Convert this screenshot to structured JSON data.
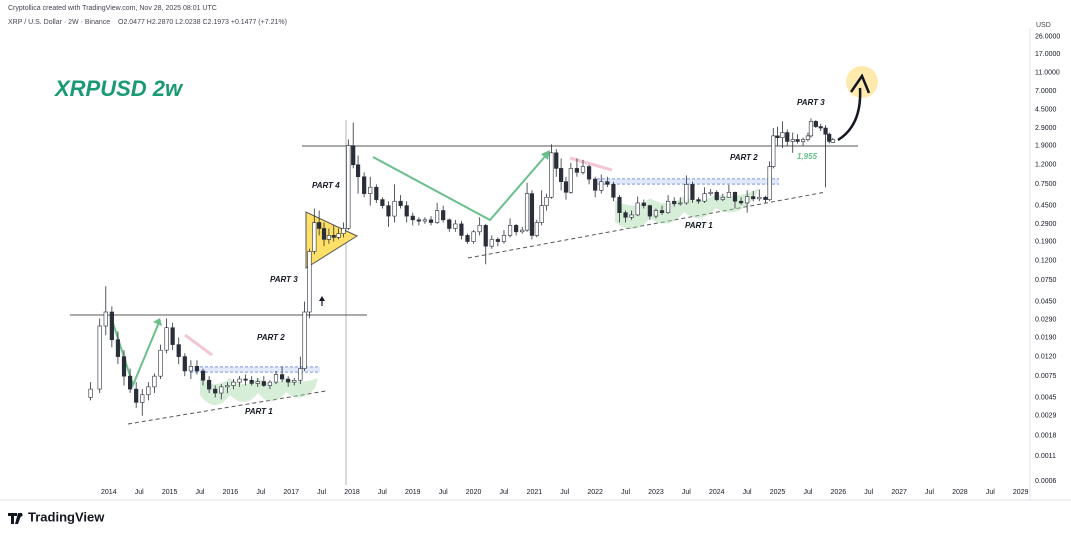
{
  "header": {
    "credit": "Cryptollica created with TradingView.com, Nov 28, 2025 08:01 UTC",
    "symbol": "XRP / U.S. Dollar · 2W · Binance",
    "ohlc_text": "O2.0477  H2.2870  L2.0238  C2.1973  +0.1477 (+7.21%)"
  },
  "footer": {
    "brand": "TradingView"
  },
  "chart_data": {
    "type": "candlestick",
    "title": "XRPUSD 2w",
    "y_unit": "USD",
    "log_scale": true,
    "grid": false,
    "up_color": "#ffffff",
    "down_color": "#2a2e39",
    "outline_color": "#2a2e39",
    "annotations": [
      "PART 1",
      "PART 2",
      "PART 3",
      "PART 4",
      "PART 1",
      "PART 2",
      "PART 3",
      "1,955"
    ],
    "xlim": [
      2012.21,
      2029.12
    ],
    "ylim": [
      0.00055,
      32
    ],
    "xticks": [
      {
        "value": 2014,
        "label": "2014"
      },
      {
        "value": 2014.5,
        "label": "Jul"
      },
      {
        "value": 2015,
        "label": "2015"
      },
      {
        "value": 2015.5,
        "label": "Jul"
      },
      {
        "value": 2016,
        "label": "2016"
      },
      {
        "value": 2016.5,
        "label": "Jul"
      },
      {
        "value": 2017,
        "label": "2017"
      },
      {
        "value": 2017.5,
        "label": "Jul"
      },
      {
        "value": 2018,
        "label": "2018"
      },
      {
        "value": 2018.5,
        "label": "Jul"
      },
      {
        "value": 2019,
        "label": "2019"
      },
      {
        "value": 2019.5,
        "label": "Jul"
      },
      {
        "value": 2020,
        "label": "2020"
      },
      {
        "value": 2020.5,
        "label": "Jul"
      },
      {
        "value": 2021,
        "label": "2021"
      },
      {
        "value": 2021.5,
        "label": "Jul"
      },
      {
        "value": 2022,
        "label": "2022"
      },
      {
        "value": 2022.5,
        "label": "Jul"
      },
      {
        "value": 2023,
        "label": "2023"
      },
      {
        "value": 2023.5,
        "label": "Jul"
      },
      {
        "value": 2024,
        "label": "2024"
      },
      {
        "value": 2024.5,
        "label": "Jul"
      },
      {
        "value": 2025,
        "label": "2025"
      },
      {
        "value": 2025.5,
        "label": "Jul"
      },
      {
        "value": 2026,
        "label": "2026"
      },
      {
        "value": 2026.5,
        "label": "Jul"
      },
      {
        "value": 2027,
        "label": "2027"
      },
      {
        "value": 2027.5,
        "label": "Jul"
      },
      {
        "value": 2028,
        "label": "2028"
      },
      {
        "value": 2028.5,
        "label": "Jul"
      },
      {
        "value": 2029,
        "label": "2029"
      }
    ],
    "yticks": [
      {
        "value": 26,
        "label": "26.0000"
      },
      {
        "value": 17,
        "label": "17.0000"
      },
      {
        "value": 11,
        "label": "11.0000"
      },
      {
        "value": 7,
        "label": "7.0000"
      },
      {
        "value": 4.5,
        "label": "4.5000"
      },
      {
        "value": 2.9,
        "label": "2.9000"
      },
      {
        "value": 1.9,
        "label": "1.9000"
      },
      {
        "value": 1.2,
        "label": "1.2000"
      },
      {
        "value": 0.75,
        "label": "0.7500"
      },
      {
        "value": 0.45,
        "label": "0.4500"
      },
      {
        "value": 0.29,
        "label": "0.2900"
      },
      {
        "value": 0.19,
        "label": "0.1900"
      },
      {
        "value": 0.12,
        "label": "0.1200"
      },
      {
        "value": 0.075,
        "label": "0.0750"
      },
      {
        "value": 0.045,
        "label": "0.0450"
      },
      {
        "value": 0.029,
        "label": "0.0290"
      },
      {
        "value": 0.019,
        "label": "0.0190"
      },
      {
        "value": 0.012,
        "label": "0.0120"
      },
      {
        "value": 0.0075,
        "label": "0.0075"
      },
      {
        "value": 0.0045,
        "label": "0.0045"
      },
      {
        "value": 0.0029,
        "label": "0.0029"
      },
      {
        "value": 0.0018,
        "label": "0.0018"
      },
      {
        "value": 0.0011,
        "label": "0.0011"
      },
      {
        "value": 0.0006,
        "label": "0.0006"
      }
    ],
    "x": [
      2013.7,
      2013.85,
      2013.95,
      2014.05,
      2014.15,
      2014.25,
      2014.35,
      2014.45,
      2014.55,
      2014.65,
      2014.75,
      2014.85,
      2014.95,
      2015.05,
      2015.15,
      2015.25,
      2015.35,
      2015.45,
      2015.55,
      2015.65,
      2015.75,
      2015.85,
      2015.95,
      2016.05,
      2016.15,
      2016.25,
      2016.35,
      2016.45,
      2016.55,
      2016.65,
      2016.75,
      2016.85,
      2016.95,
      2017.05,
      2017.15,
      2017.22,
      2017.3,
      2017.38,
      2017.46,
      2017.54,
      2017.62,
      2017.7,
      2017.78,
      2017.86,
      2017.94,
      2018.02,
      2018.1,
      2018.2,
      2018.3,
      2018.4,
      2018.5,
      2018.6,
      2018.7,
      2018.8,
      2018.9,
      2019.0,
      2019.1,
      2019.2,
      2019.3,
      2019.4,
      2019.5,
      2019.6,
      2019.7,
      2019.8,
      2019.9,
      2020.0,
      2020.1,
      2020.2,
      2020.3,
      2020.4,
      2020.5,
      2020.6,
      2020.7,
      2020.8,
      2020.88,
      2020.96,
      2021.04,
      2021.12,
      2021.2,
      2021.28,
      2021.36,
      2021.44,
      2021.52,
      2021.6,
      2021.7,
      2021.8,
      2021.9,
      2022.0,
      2022.1,
      2022.2,
      2022.3,
      2022.4,
      2022.5,
      2022.6,
      2022.7,
      2022.8,
      2022.9,
      2023.0,
      2023.1,
      2023.2,
      2023.3,
      2023.4,
      2023.5,
      2023.6,
      2023.7,
      2023.8,
      2023.9,
      2024.0,
      2024.1,
      2024.2,
      2024.3,
      2024.4,
      2024.5,
      2024.6,
      2024.7,
      2024.8,
      2024.87,
      2024.93,
      2025.0,
      2025.08,
      2025.16,
      2025.25,
      2025.33,
      2025.42,
      2025.5,
      2025.55,
      2025.63,
      2025.71,
      2025.79,
      2025.85,
      2025.91
    ],
    "ohlc": [
      [
        0.0045,
        0.0065,
        0.0042,
        0.0055
      ],
      [
        0.0055,
        0.03,
        0.005,
        0.025
      ],
      [
        0.025,
        0.065,
        0.02,
        0.035
      ],
      [
        0.035,
        0.04,
        0.015,
        0.018
      ],
      [
        0.018,
        0.022,
        0.01,
        0.012
      ],
      [
        0.012,
        0.014,
        0.006,
        0.0075
      ],
      [
        0.0075,
        0.009,
        0.005,
        0.0055
      ],
      [
        0.0055,
        0.0065,
        0.0035,
        0.004
      ],
      [
        0.004,
        0.0055,
        0.0029,
        0.0048
      ],
      [
        0.0048,
        0.0065,
        0.0042,
        0.0058
      ],
      [
        0.0058,
        0.008,
        0.005,
        0.0075
      ],
      [
        0.0075,
        0.016,
        0.007,
        0.014
      ],
      [
        0.014,
        0.03,
        0.013,
        0.024
      ],
      [
        0.024,
        0.027,
        0.014,
        0.016
      ],
      [
        0.016,
        0.019,
        0.01,
        0.012
      ],
      [
        0.012,
        0.013,
        0.0075,
        0.0085
      ],
      [
        0.0085,
        0.011,
        0.007,
        0.0095
      ],
      [
        0.0095,
        0.011,
        0.0078,
        0.0085
      ],
      [
        0.0085,
        0.009,
        0.006,
        0.0068
      ],
      [
        0.0068,
        0.0075,
        0.005,
        0.0055
      ],
      [
        0.0055,
        0.006,
        0.0045,
        0.005
      ],
      [
        0.005,
        0.0062,
        0.0043,
        0.0058
      ],
      [
        0.0058,
        0.0065,
        0.005,
        0.006
      ],
      [
        0.006,
        0.007,
        0.0055,
        0.0065
      ],
      [
        0.0065,
        0.0075,
        0.0058,
        0.007
      ],
      [
        0.007,
        0.0078,
        0.006,
        0.0068
      ],
      [
        0.0068,
        0.0075,
        0.006,
        0.0063
      ],
      [
        0.0063,
        0.0072,
        0.0058,
        0.0066
      ],
      [
        0.0066,
        0.0075,
        0.0058,
        0.006
      ],
      [
        0.006,
        0.0068,
        0.0055,
        0.0065
      ],
      [
        0.0065,
        0.0085,
        0.0062,
        0.0078
      ],
      [
        0.0078,
        0.0095,
        0.0065,
        0.007
      ],
      [
        0.007,
        0.0075,
        0.0058,
        0.0065
      ],
      [
        0.0065,
        0.0072,
        0.006,
        0.0068
      ],
      [
        0.0068,
        0.012,
        0.0062,
        0.009
      ],
      [
        0.009,
        0.045,
        0.0085,
        0.035
      ],
      [
        0.035,
        0.16,
        0.03,
        0.15
      ],
      [
        0.15,
        0.42,
        0.14,
        0.3
      ],
      [
        0.3,
        0.4,
        0.22,
        0.26
      ],
      [
        0.26,
        0.3,
        0.17,
        0.2
      ],
      [
        0.2,
        0.26,
        0.18,
        0.22
      ],
      [
        0.22,
        0.28,
        0.19,
        0.21
      ],
      [
        0.21,
        0.26,
        0.2,
        0.23
      ],
      [
        0.23,
        0.3,
        0.21,
        0.26
      ],
      [
        0.26,
        2.2,
        0.25,
        1.9
      ],
      [
        1.9,
        3.3,
        1.1,
        1.2
      ],
      [
        1.2,
        1.5,
        0.6,
        0.9
      ],
      [
        0.9,
        1.0,
        0.55,
        0.6
      ],
      [
        0.6,
        0.9,
        0.45,
        0.7
      ],
      [
        0.7,
        0.75,
        0.48,
        0.52
      ],
      [
        0.52,
        0.55,
        0.42,
        0.45
      ],
      [
        0.45,
        0.5,
        0.27,
        0.35
      ],
      [
        0.35,
        0.75,
        0.3,
        0.5
      ],
      [
        0.5,
        0.58,
        0.42,
        0.45
      ],
      [
        0.45,
        0.5,
        0.3,
        0.35
      ],
      [
        0.35,
        0.38,
        0.28,
        0.32
      ],
      [
        0.32,
        0.34,
        0.28,
        0.31
      ],
      [
        0.31,
        0.34,
        0.29,
        0.32
      ],
      [
        0.32,
        0.35,
        0.28,
        0.3
      ],
      [
        0.3,
        0.48,
        0.29,
        0.4
      ],
      [
        0.4,
        0.45,
        0.3,
        0.32
      ],
      [
        0.32,
        0.33,
        0.24,
        0.26
      ],
      [
        0.26,
        0.32,
        0.24,
        0.29
      ],
      [
        0.29,
        0.31,
        0.2,
        0.22
      ],
      [
        0.22,
        0.23,
        0.18,
        0.19
      ],
      [
        0.19,
        0.25,
        0.18,
        0.24
      ],
      [
        0.24,
        0.34,
        0.22,
        0.28
      ],
      [
        0.28,
        0.29,
        0.11,
        0.17
      ],
      [
        0.17,
        0.22,
        0.16,
        0.2
      ],
      [
        0.2,
        0.21,
        0.17,
        0.19
      ],
      [
        0.19,
        0.25,
        0.18,
        0.22
      ],
      [
        0.22,
        0.33,
        0.21,
        0.28
      ],
      [
        0.28,
        0.29,
        0.22,
        0.24
      ],
      [
        0.24,
        0.27,
        0.23,
        0.25
      ],
      [
        0.25,
        0.78,
        0.24,
        0.6
      ],
      [
        0.6,
        0.65,
        0.2,
        0.22
      ],
      [
        0.22,
        0.32,
        0.21,
        0.3
      ],
      [
        0.3,
        0.65,
        0.28,
        0.45
      ],
      [
        0.45,
        0.6,
        0.4,
        0.55
      ],
      [
        0.55,
        1.96,
        0.53,
        1.6
      ],
      [
        1.6,
        1.75,
        0.9,
        1.1
      ],
      [
        1.1,
        1.4,
        0.65,
        0.8
      ],
      [
        0.8,
        0.9,
        0.52,
        0.62
      ],
      [
        0.62,
        1.25,
        0.6,
        1.1
      ],
      [
        1.1,
        1.4,
        0.9,
        1.0
      ],
      [
        1.0,
        1.35,
        0.95,
        1.15
      ],
      [
        1.15,
        1.2,
        0.75,
        0.85
      ],
      [
        0.85,
        0.9,
        0.55,
        0.65
      ],
      [
        0.65,
        0.95,
        0.6,
        0.8
      ],
      [
        0.8,
        0.9,
        0.7,
        0.75
      ],
      [
        0.75,
        0.8,
        0.5,
        0.55
      ],
      [
        0.55,
        0.58,
        0.3,
        0.38
      ],
      [
        0.38,
        0.4,
        0.3,
        0.34
      ],
      [
        0.34,
        0.4,
        0.32,
        0.36
      ],
      [
        0.36,
        0.56,
        0.35,
        0.48
      ],
      [
        0.48,
        0.52,
        0.42,
        0.45
      ],
      [
        0.45,
        0.46,
        0.32,
        0.35
      ],
      [
        0.35,
        0.42,
        0.33,
        0.4
      ],
      [
        0.4,
        0.45,
        0.36,
        0.38
      ],
      [
        0.38,
        0.58,
        0.37,
        0.5
      ],
      [
        0.5,
        0.55,
        0.44,
        0.47
      ],
      [
        0.47,
        0.55,
        0.45,
        0.48
      ],
      [
        0.48,
        0.93,
        0.46,
        0.75
      ],
      [
        0.75,
        0.8,
        0.48,
        0.52
      ],
      [
        0.52,
        0.55,
        0.47,
        0.5
      ],
      [
        0.5,
        0.7,
        0.48,
        0.6
      ],
      [
        0.6,
        0.67,
        0.57,
        0.62
      ],
      [
        0.62,
        0.65,
        0.5,
        0.52
      ],
      [
        0.52,
        0.6,
        0.5,
        0.55
      ],
      [
        0.55,
        0.74,
        0.55,
        0.62
      ],
      [
        0.62,
        0.63,
        0.42,
        0.5
      ],
      [
        0.5,
        0.55,
        0.46,
        0.48
      ],
      [
        0.48,
        0.65,
        0.38,
        0.56
      ],
      [
        0.56,
        0.64,
        0.5,
        0.53
      ],
      [
        0.53,
        0.66,
        0.5,
        0.55
      ],
      [
        0.55,
        0.57,
        0.48,
        0.52
      ],
      [
        0.52,
        1.3,
        0.5,
        1.15
      ],
      [
        1.15,
        2.9,
        1.1,
        2.4
      ],
      [
        2.4,
        3.0,
        1.9,
        2.3
      ],
      [
        2.3,
        3.4,
        1.8,
        2.6
      ],
      [
        2.6,
        2.8,
        1.9,
        2.1
      ],
      [
        2.1,
        2.6,
        1.6,
        2.2
      ],
      [
        2.2,
        2.5,
        2.0,
        2.1
      ],
      [
        2.1,
        2.3,
        1.9,
        2.2
      ],
      [
        2.2,
        2.6,
        2.1,
        2.4
      ],
      [
        2.4,
        3.65,
        2.3,
        3.4
      ],
      [
        3.4,
        3.5,
        2.9,
        3.0
      ],
      [
        3.0,
        3.2,
        2.7,
        2.9
      ],
      [
        2.9,
        3.1,
        0.7,
        2.5
      ],
      [
        2.5,
        2.6,
        2.0,
        2.1
      ],
      [
        2.0477,
        2.287,
        2.0238,
        2.1973
      ]
    ]
  }
}
